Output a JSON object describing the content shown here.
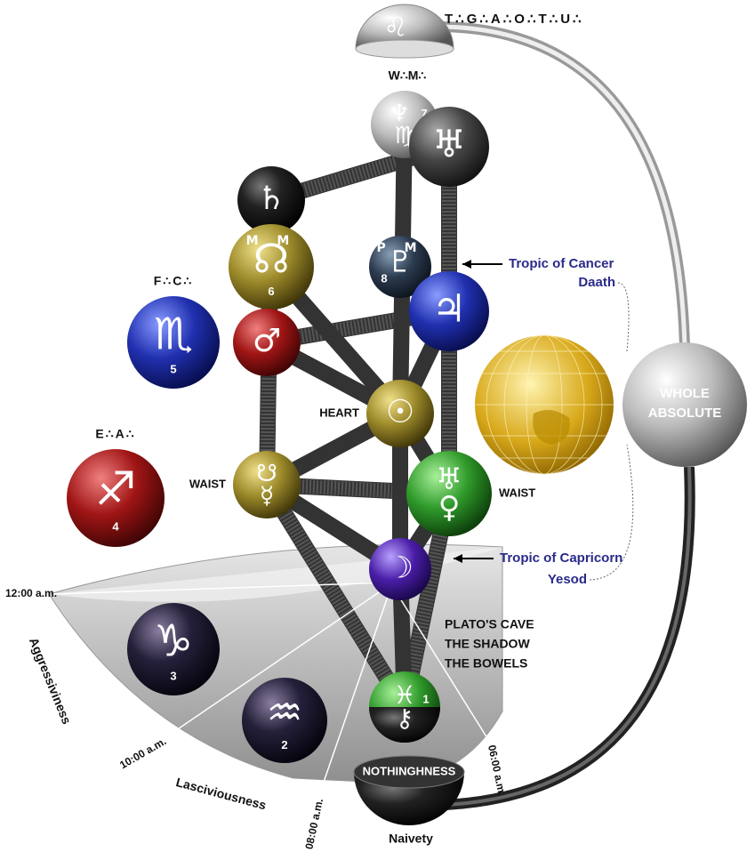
{
  "header": {
    "title": "T∴G∴A∴O∴T∴U∴",
    "symbol": "♌",
    "subtitle": "W∴M∴"
  },
  "spheres": [
    {
      "symbols": [
        "♆",
        "♍"
      ],
      "number": "7"
    },
    {
      "symbols": [
        "♅"
      ]
    },
    {
      "symbols": [
        "♄"
      ]
    },
    {
      "tag": "M M",
      "symbols": [
        "☊"
      ],
      "number": "6"
    },
    {
      "tag": "P M",
      "symbols": [
        "♇"
      ],
      "number": "8"
    },
    {
      "symbols": [
        "♃"
      ]
    },
    {
      "symbols": [
        "♂"
      ]
    },
    {
      "tag": "F∴C∴",
      "symbols": [
        "♏"
      ],
      "number": "5"
    },
    {
      "label": "HEART",
      "symbols": [
        "☉"
      ]
    },
    {
      "label": "WAIST",
      "symbols": [
        "☋",
        "☿"
      ]
    },
    {
      "label": "WAIST",
      "symbols": [
        "♅",
        "♀"
      ]
    },
    {
      "tag": "E∴A∴",
      "symbols": [
        "♐"
      ],
      "number": "4"
    },
    {
      "symbols": [
        "☽"
      ]
    },
    {
      "symbols": [
        "♑"
      ],
      "number": "3"
    },
    {
      "symbols": [
        "♒"
      ],
      "number": "2"
    },
    {
      "symbols": [
        "♓",
        "⚷"
      ],
      "number": "1"
    }
  ],
  "tropics": [
    {
      "name": "Tropic of Cancer",
      "sephira": "Daath"
    },
    {
      "name": "Tropic of Capricorn",
      "sephira": "Yesod"
    }
  ],
  "whole_absolute": [
    "WHOLE",
    "ABSOLUTE"
  ],
  "cave": [
    "PLATO'S CAVE",
    "THE SHADOW",
    "THE BOWELS"
  ],
  "times": [
    "12:00 a.m.",
    "10:00 a.m.",
    "08:00 a.m.",
    "06:00 a.m."
  ],
  "traits": [
    "Aggressiviness",
    "Lasciviousness",
    "Naivety"
  ],
  "nothingness": "NOTHINGHNESS"
}
